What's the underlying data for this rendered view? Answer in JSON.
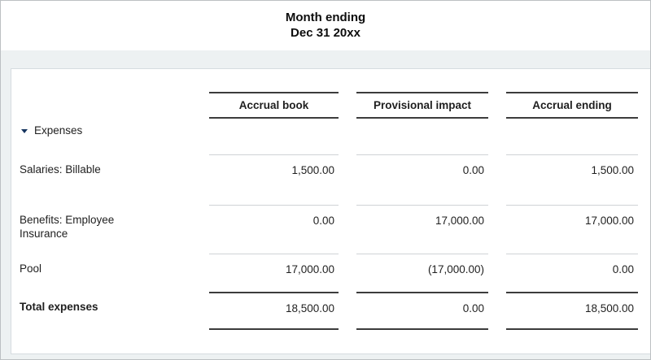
{
  "title": {
    "line1": "Month ending",
    "line2": "Dec 31 20xx"
  },
  "table": {
    "columns": [
      "Accrual book",
      "Provisional impact",
      "Accrual ending"
    ],
    "group": {
      "label": "Expenses",
      "expanded": true
    },
    "rows": [
      {
        "label": "Salaries: Billable",
        "values": [
          "1,500.00",
          "0.00",
          "1,500.00"
        ]
      },
      {
        "label": "Benefits: Employee Insurance",
        "values": [
          "0.00",
          "17,000.00",
          "17,000.00"
        ]
      },
      {
        "label": "Pool",
        "values": [
          "17,000.00",
          "(17,000.00)",
          "0.00"
        ]
      }
    ],
    "total": {
      "label": "Total expenses",
      "values": [
        "18,500.00",
        "0.00",
        "18,500.00"
      ]
    }
  },
  "icons": {
    "collapse": "triangle-down-icon"
  },
  "colors": {
    "band_background": "#edf1f2",
    "card_border": "#d5dce0",
    "dark_rule": "#3c3c3c",
    "light_rule": "#cfd3d6",
    "collapse_triangle": "#16355f",
    "text": "#1f1f1f"
  }
}
